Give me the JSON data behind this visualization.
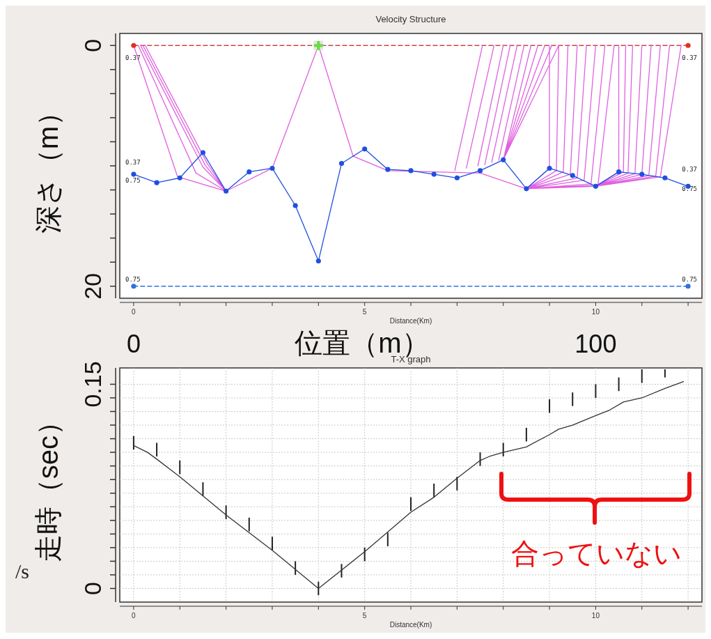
{
  "chart_data": [
    {
      "type": "line",
      "title": "Velocity Structure",
      "xlabel": "Distance(Km)",
      "ylabel": "深さ（m）",
      "x2label": "位置（m）",
      "xlim": [
        -0.3,
        12.3
      ],
      "xticks": [
        0,
        {
          "value": 1,
          "label": null
        },
        {
          "value": 2,
          "label": null
        },
        {
          "value": 3,
          "label": null
        },
        {
          "value": 4,
          "label": null
        },
        5,
        {
          "value": 6,
          "label": null
        },
        {
          "value": 7,
          "label": null
        },
        {
          "value": 8,
          "label": null
        },
        {
          "value": 9,
          "label": null
        },
        10,
        {
          "value": 11,
          "label": null
        },
        {
          "value": 12,
          "label": null
        }
      ],
      "x2lim": [
        -3,
        123
      ],
      "x2ticks": [
        0,
        100
      ],
      "ylim": [
        21,
        -1
      ],
      "yticks": [
        0,
        {
          "value": 2,
          "label": null
        },
        {
          "value": 4,
          "label": null
        },
        {
          "value": 6,
          "label": null
        },
        {
          "value": 8,
          "label": null
        },
        {
          "value": 10,
          "label": null
        },
        {
          "value": 12,
          "label": null
        },
        {
          "value": 14,
          "label": null
        },
        {
          "value": 16,
          "label": null
        },
        {
          "value": 18,
          "label": null
        },
        20
      ],
      "grid": false,
      "series": [
        {
          "color": "#d04040",
          "line_style": "dashed",
          "marker": "none",
          "x": [
            0,
            12
          ],
          "values": [
            0,
            0
          ]
        },
        {
          "color": "#3070e0",
          "line_style": "dashed",
          "marker": "circle",
          "x": [
            0,
            12
          ],
          "values": [
            20,
            20
          ]
        },
        {
          "color": "#e060e0",
          "line_style": "solid",
          "marker": "none",
          "x": [
            0,
            0.95,
            2,
            null,
            0.1,
            1.35,
            2,
            null,
            0.15,
            1.5,
            2,
            null,
            0.2,
            1.55,
            2,
            null,
            0.25,
            1.6,
            2,
            null,
            2,
            3,
            4,
            null,
            4,
            4.75,
            5.5,
            6.5,
            7.5,
            8.5,
            10,
            null,
            6.95,
            7.55,
            null,
            7.2,
            7.8,
            null,
            7.45,
            8.0,
            null,
            7.6,
            8.15,
            null,
            7.75,
            8.3,
            null,
            7.9,
            8.45,
            null,
            8,
            8.6,
            null,
            8,
            8.75,
            null,
            8,
            8.9,
            null,
            8,
            9.05,
            null,
            8,
            9.2,
            null,
            8.5,
            9,
            9,
            null,
            8.5,
            9.15,
            9.2,
            null,
            8.5,
            9.3,
            9.4,
            null,
            8.5,
            9.45,
            9.6,
            null,
            8.5,
            9.6,
            9.8,
            null,
            8.5,
            9.75,
            10,
            null,
            8.5,
            9.9,
            10.2,
            null,
            8.5,
            10.05,
            10.4,
            null,
            10,
            10.5,
            10.5,
            null,
            10,
            10.6,
            10.65,
            null,
            10,
            10.7,
            10.8,
            null,
            10,
            10.85,
            11,
            null,
            10,
            11,
            11.2,
            null,
            10,
            11.15,
            11.4,
            null,
            10,
            11.3,
            11.6,
            null,
            10,
            11.4,
            11.85
          ],
          "values": [
            0,
            10.9,
            12.1,
            null,
            0,
            10.6,
            12.1,
            null,
            0,
            10.1,
            12.1,
            null,
            0,
            9.95,
            12.1,
            null,
            0,
            9.85,
            12.1,
            null,
            12.1,
            10.2,
            0,
            null,
            0,
            9.2,
            10.4,
            10.5,
            10.6,
            11.9,
            11.7,
            null,
            10.4,
            0,
            null,
            10.2,
            0,
            null,
            10,
            0,
            null,
            9.9,
            0,
            null,
            9.7,
            0,
            null,
            9.55,
            0,
            null,
            9.5,
            0,
            null,
            9.5,
            0,
            null,
            9.5,
            0,
            null,
            9.5,
            0,
            null,
            9.5,
            0,
            null,
            11.9,
            10.2,
            0,
            null,
            11.9,
            10.4,
            0,
            null,
            11.9,
            10.5,
            0,
            null,
            11.9,
            10.7,
            0,
            null,
            11.9,
            11.0,
            0,
            null,
            11.9,
            11.2,
            0,
            null,
            11.9,
            11.5,
            0,
            null,
            11.9,
            11.6,
            0,
            null,
            11.7,
            10.5,
            0,
            null,
            11.7,
            10.5,
            0,
            null,
            11.7,
            10.6,
            0,
            null,
            11.7,
            10.65,
            0,
            null,
            11.7,
            10.7,
            0,
            null,
            11.7,
            10.8,
            0,
            null,
            11.7,
            10.85,
            0,
            null,
            11.7,
            10.9,
            0
          ]
        },
        {
          "color": "#1f4fe0",
          "line_style": "solid",
          "marker": "circle",
          "x": [
            0,
            0.5,
            1,
            1.5,
            2,
            2.5,
            3,
            3.5,
            4,
            4.5,
            5,
            5.5,
            6,
            6.5,
            7,
            7.5,
            8,
            8.5,
            9,
            9.5,
            10,
            10.5,
            11,
            11.5,
            12
          ],
          "values": [
            10.7,
            11.4,
            11.0,
            8.9,
            12.1,
            10.5,
            10.2,
            13.3,
            17.9,
            9.8,
            8.6,
            10.3,
            10.4,
            10.7,
            11.0,
            10.4,
            9.5,
            11.9,
            10.2,
            10.8,
            11.7,
            10.5,
            10.7,
            11.0,
            11.7
          ]
        },
        {
          "type": "scatter",
          "color": "#e03020",
          "marker": "circle",
          "x": [
            0,
            12
          ],
          "values": [
            0,
            0
          ]
        },
        {
          "type": "scatter",
          "color": "#66dd44",
          "marker": "cross",
          "x": [
            4
          ],
          "values": [
            0
          ]
        }
      ],
      "annotations": [
        "0.37",
        "0.37",
        "0.75",
        "0.75",
        "0.37",
        "0.37",
        "0.75",
        "0.75"
      ]
    },
    {
      "type": "line",
      "title": "T-X graph",
      "xlabel": "Distance(Km)",
      "ylabel": "走時（sec）",
      "xlim": [
        -0.3,
        12.3
      ],
      "xticks": [
        0,
        {
          "value": 1,
          "label": null
        },
        {
          "value": 2,
          "label": null
        },
        {
          "value": 3,
          "label": null
        },
        {
          "value": 4,
          "label": null
        },
        5,
        {
          "value": 6,
          "label": null
        },
        {
          "value": 7,
          "label": null
        },
        {
          "value": 8,
          "label": null
        },
        {
          "value": 9,
          "label": null
        },
        10,
        {
          "value": 11,
          "label": null
        },
        {
          "value": 12,
          "label": null
        }
      ],
      "ylim": [
        -0.01,
        0.162
      ],
      "yticks": [
        0,
        {
          "value": 0.01,
          "label": null
        },
        {
          "value": 0.02,
          "label": null
        },
        {
          "value": 0.03,
          "label": null
        },
        {
          "value": 0.04,
          "label": null
        },
        {
          "value": 0.05,
          "label": null
        },
        {
          "value": 0.06,
          "label": null
        },
        {
          "value": 0.07,
          "label": null
        },
        {
          "value": 0.08,
          "label": null
        },
        {
          "value": 0.09,
          "label": null
        },
        {
          "value": 0.1,
          "label": null
        },
        {
          "value": 0.11,
          "label": null
        },
        {
          "value": 0.12,
          "label": null
        },
        {
          "value": 0.13,
          "label": null
        },
        {
          "value": 0.14,
          "label": null
        },
        0.15
      ],
      "grid": true,
      "series": [
        {
          "type": "bar",
          "color": "#222222",
          "x": [
            0,
            0.5,
            1,
            1.5,
            2,
            2.5,
            3,
            3.5,
            4,
            4.5,
            5,
            5.5,
            6,
            6.5,
            7,
            7.5,
            8,
            8.5,
            9,
            9.5,
            10,
            10.5,
            11,
            11.5
          ],
          "base": [
            0.102,
            0.097,
            0.084,
            0.068,
            0.051,
            0.042,
            0.028,
            0.01,
            -0.005,
            0.008,
            0.02,
            0.031,
            0.057,
            0.067,
            0.072,
            0.09,
            0.097,
            0.108,
            0.129,
            0.134,
            0.14,
            0.145,
            0.151,
            0.155
          ],
          "values": [
            0.01,
            0.01,
            0.01,
            0.01,
            0.01,
            0.01,
            0.01,
            0.01,
            0.01,
            0.01,
            0.01,
            0.01,
            0.01,
            0.01,
            0.01,
            0.01,
            0.01,
            0.01,
            0.01,
            0.01,
            0.01,
            0.01,
            0.01,
            0.006
          ]
        },
        {
          "color": "#333333",
          "line_style": "solid",
          "marker": "none",
          "x": [
            0,
            0.3,
            0.5,
            1,
            2,
            3,
            4,
            5,
            6,
            6.5,
            7,
            7.5,
            7.7,
            8,
            8.5,
            9,
            9.2,
            9.5,
            10,
            10.3,
            10.6,
            11,
            11.5,
            11.9
          ],
          "values": [
            0.105,
            0.1,
            0.095,
            0.082,
            0.054,
            0.028,
            0,
            0.027,
            0.056,
            0.067,
            0.081,
            0.094,
            0.097,
            0.1,
            0.104,
            0.113,
            0.117,
            0.12,
            0.127,
            0.131,
            0.137,
            0.14,
            0.147,
            0.152
          ]
        }
      ],
      "annotations": [
        "合っていない",
        "/s"
      ]
    }
  ]
}
